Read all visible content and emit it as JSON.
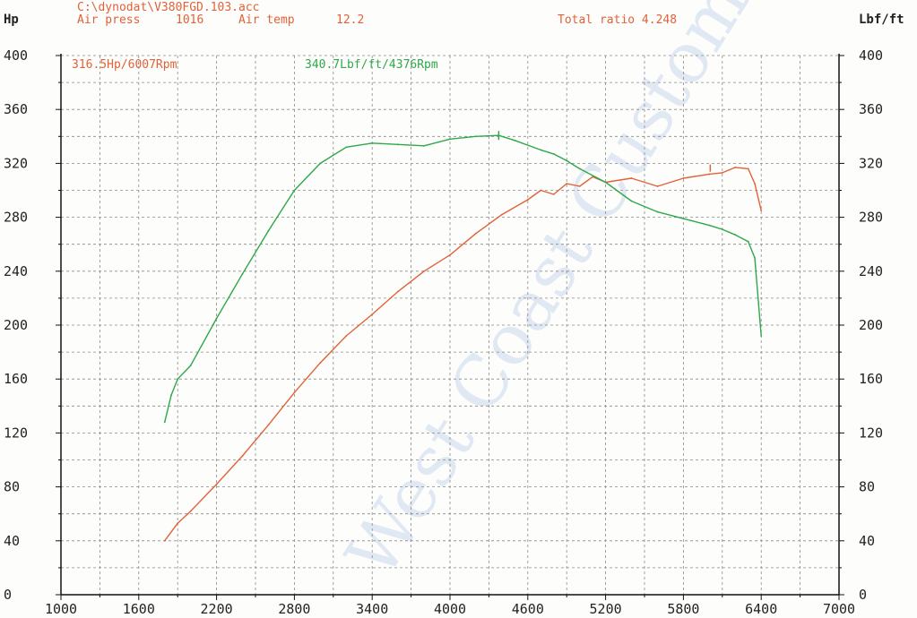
{
  "header": {
    "file_path": "C:\\dynodat\\V380FGD.103.acc",
    "air_press_label": "Air press",
    "air_press_value": "1016",
    "air_temp_label": "Air temp",
    "air_temp_value": "12.2",
    "total_ratio": "Total ratio 4.248"
  },
  "watermark": "West Coast Customs",
  "colors": {
    "hp": "#e0623a",
    "torque": "#2ea84a",
    "grid": "#8a8a8a",
    "axis": "#111111",
    "watermark": "#c9d7ec"
  },
  "chart_data": {
    "type": "line",
    "xlim": [
      1000,
      7000
    ],
    "ylim": [
      0,
      400
    ],
    "x_ticks": [
      1000,
      1600,
      2200,
      2800,
      3400,
      4000,
      4600,
      5200,
      5800,
      6400,
      7000
    ],
    "y_ticks": [
      0,
      40,
      80,
      120,
      160,
      200,
      240,
      280,
      320,
      360,
      400
    ],
    "y_left_label": "Hp",
    "y_right_label": "Lbf/ft",
    "grid": true,
    "annotations": {
      "hp_peak": "316.5Hp/6007Rpm",
      "torque_peak": "340.7Lbf/ft/4376Rpm"
    },
    "series": [
      {
        "name": "Hp",
        "x": [
          1800,
          1900,
          2000,
          2200,
          2400,
          2600,
          2800,
          3000,
          3200,
          3400,
          3600,
          3800,
          4000,
          4200,
          4400,
          4600,
          4700,
          4800,
          4900,
          5000,
          5100,
          5200,
          5400,
          5600,
          5800,
          6000,
          6100,
          6200,
          6300,
          6350,
          6400
        ],
        "y": [
          40,
          53,
          62,
          82,
          103,
          126,
          150,
          172,
          192,
          208,
          225,
          240,
          252,
          268,
          282,
          293,
          300,
          297,
          305,
          303,
          310,
          306,
          309,
          303,
          309,
          312,
          313,
          317,
          316,
          305,
          285
        ]
      },
      {
        "name": "Lbf/ft",
        "x": [
          1800,
          1850,
          1900,
          2000,
          2200,
          2400,
          2600,
          2800,
          3000,
          3200,
          3400,
          3600,
          3800,
          4000,
          4200,
          4376,
          4500,
          4700,
          4800,
          4900,
          5000,
          5200,
          5400,
          5600,
          5800,
          6000,
          6100,
          6200,
          6300,
          6350,
          6400
        ],
        "y": [
          128,
          148,
          160,
          170,
          205,
          238,
          270,
          300,
          320,
          332,
          335,
          334,
          333,
          338,
          340,
          340.7,
          337,
          330,
          327,
          322,
          316,
          306,
          292,
          284,
          279,
          274,
          271,
          267,
          262,
          250,
          192
        ]
      }
    ]
  }
}
